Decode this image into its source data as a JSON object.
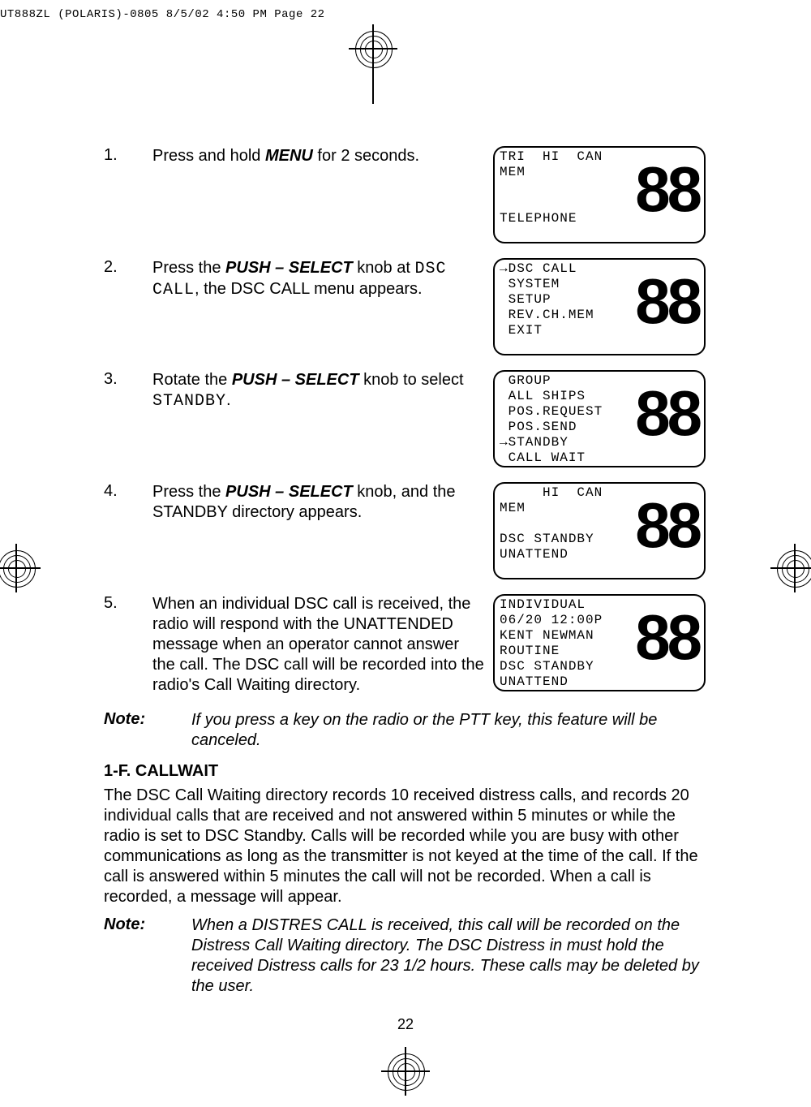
{
  "header": {
    "text": "UT888ZL (POLARIS)-0805  8/5/02  4:50 PM  Page 22"
  },
  "steps": [
    {
      "num": "1.",
      "html": "Press and hold <span class='bi'>MENU</span> for 2 seconds.",
      "lcd": "TRI  HI  CAN\nMEM\n\n\nTELEPHONE",
      "big": "88"
    },
    {
      "num": "2.",
      "html": "Press the <span class='bi'>PUSH – SELECT</span> knob at <span class='mono'>DSC CALL</span>, the DSC CALL menu appears.",
      "lcd": "→DSC CALL\n SYSTEM\n SETUP\n REV.CH.MEM\n EXIT",
      "big": "88"
    },
    {
      "num": "3.",
      "html": "Rotate the <span class='bi'>PUSH – SELECT</span> knob to select <span class='mono'>STANDBY</span>.",
      "lcd": " GROUP\n ALL SHIPS\n POS.REQUEST\n POS.SEND\n→STANDBY\n CALL WAIT",
      "big": "88"
    },
    {
      "num": "4.",
      "html": "Press the <span class='bi'>PUSH – SELECT</span> knob, and the STANDBY directory appears.",
      "lcd": "     HI  CAN\nMEM\n\nDSC STANDBY\nUNATTEND",
      "big": "88"
    },
    {
      "num": "5.",
      "html": "When an individual DSC call is received, the radio will respond with the UNATTENDED message when an operator cannot answer the call. The DSC call will be recorded into the radio's Call Waiting directory.",
      "lcd": "INDIVIDUAL\n06/20 12:00P\nKENT NEWMAN\nROUTINE\nDSC STANDBY\nUNATTEND",
      "big": "88"
    }
  ],
  "note1": {
    "label": "Note:",
    "body": "If you press a key on the radio or the PTT key, this feature will be canceled."
  },
  "section": {
    "head": "1-F. CALLWAIT",
    "para": "The DSC Call Waiting directory records 10 received distress calls, and records 20 individual calls that are received and not answered within 5 minutes or while the radio is set to DSC Standby. Calls will be recorded while you are busy with other communications as long as the transmitter is not keyed at the time of the call. If the call is answered within 5 minutes the call will not be recorded. When a call is recorded, a message will appear."
  },
  "note2": {
    "label": "Note:",
    "body": "When a DISTRES CALL is received, this call will be recorded on the Distress Call Waiting directory.  The DSC Distress in must hold the received Distress calls for 23 1/2 hours. These calls may be deleted by the user."
  },
  "pagenum": "22"
}
